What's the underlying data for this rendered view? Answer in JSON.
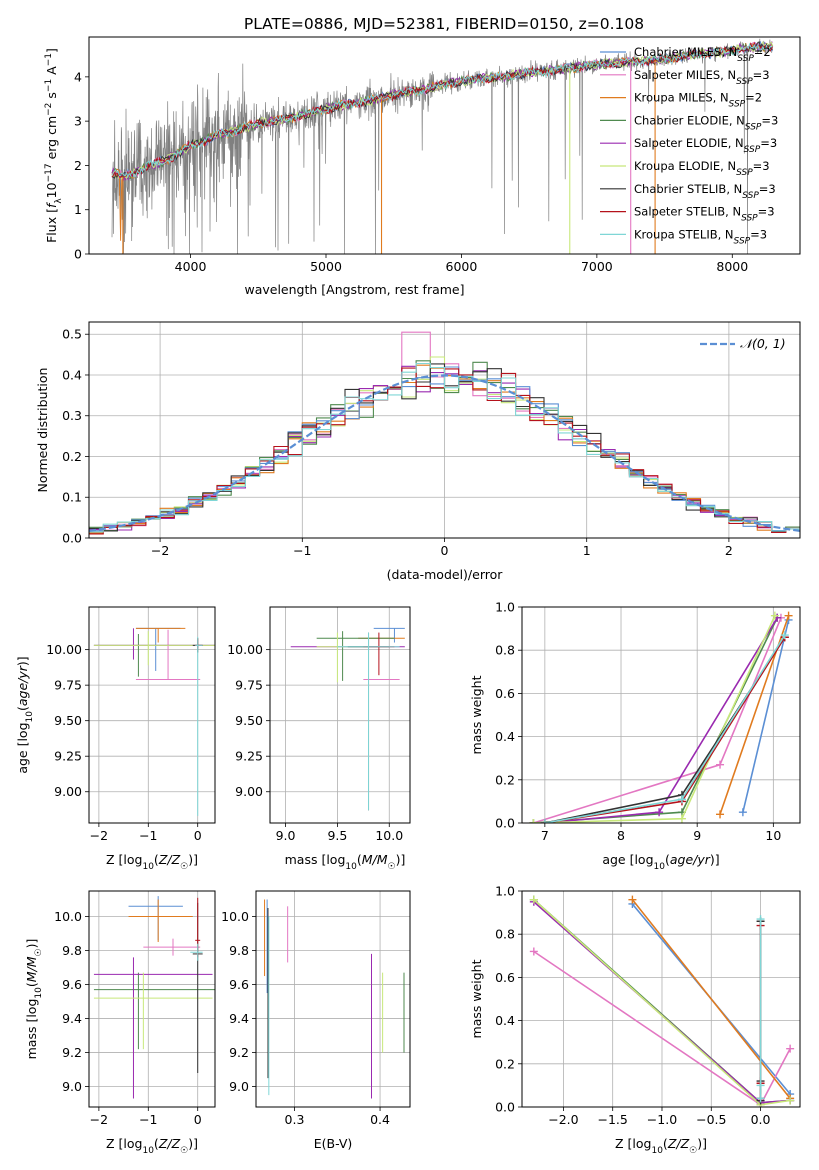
{
  "figure_title": "PLATE=0886, MJD=52381, FIBERID=0150, z=0.108",
  "colors": {
    "chabrier_miles": "#5b8fd4",
    "salpeter_miles": "#e377c2",
    "kroupa_miles": "#e07b1f",
    "chabrier_elodie": "#4f8a4f",
    "salpeter_elodie": "#9a2ab0",
    "kroupa_elodie": "#c8e87a",
    "chabrier_stelib": "#333333",
    "salpeter_stelib": "#b5121b",
    "kroupa_stelib": "#7fd6d6",
    "data": "#808080",
    "gaussian": "#5b8fd4"
  },
  "chart_data": [
    {
      "id": "spectrum",
      "type": "line",
      "title": "PLATE=0886, MJD=52381, FIBERID=0150, z=0.108",
      "xlabel": "wavelength [Angstrom, rest frame]",
      "ylabel": "Flux [fλ10⁻¹⁷ erg cm⁻² s⁻¹ A⁻¹]",
      "xlim": [
        3250,
        8500
      ],
      "ylim": [
        0,
        4.9
      ],
      "xticks": [
        4000,
        5000,
        6000,
        7000,
        8000
      ],
      "yticks": [
        0,
        1,
        2,
        3,
        4
      ],
      "grid": false,
      "legend_position": "top-right",
      "continuum": {
        "x": [
          3420,
          3500,
          3600,
          3700,
          3800,
          3900,
          4000,
          4100,
          4200,
          4300,
          4500,
          4700,
          4900,
          5100,
          5300,
          5500,
          5700,
          5900,
          6100,
          6300,
          6500,
          6700,
          6900,
          7100,
          7300,
          7500,
          7700,
          7900,
          8100,
          8300
        ],
        "y": [
          1.85,
          1.75,
          1.85,
          2.0,
          2.1,
          2.25,
          2.45,
          2.55,
          2.7,
          2.75,
          2.95,
          3.05,
          3.2,
          3.35,
          3.45,
          3.6,
          3.7,
          3.85,
          3.95,
          4.0,
          4.1,
          4.15,
          4.25,
          4.3,
          4.35,
          4.4,
          4.5,
          4.55,
          4.65,
          4.7
        ]
      },
      "legend": [
        {
          "key": "chabrier_miles",
          "label": "Chabrier MILES, N",
          "sub": "SSP",
          "tail": "=2"
        },
        {
          "key": "salpeter_miles",
          "label": "Salpeter MILES, N",
          "sub": "SSP",
          "tail": "=3"
        },
        {
          "key": "kroupa_miles",
          "label": "Kroupa MILES, N",
          "sub": "SSP",
          "tail": "=2"
        },
        {
          "key": "chabrier_elodie",
          "label": "Chabrier ELODIE, N",
          "sub": "SSP",
          "tail": "=3"
        },
        {
          "key": "salpeter_elodie",
          "label": "Salpeter ELODIE, N",
          "sub": "SSP",
          "tail": "=3"
        },
        {
          "key": "kroupa_elodie",
          "label": "Kroupa ELODIE, N",
          "sub": "SSP",
          "tail": "=3"
        },
        {
          "key": "chabrier_stelib",
          "label": "Chabrier STELIB, N",
          "sub": "SSP",
          "tail": "=3"
        },
        {
          "key": "salpeter_stelib",
          "label": "Salpeter STELIB, N",
          "sub": "SSP",
          "tail": "=3"
        },
        {
          "key": "kroupa_stelib",
          "label": "Kroupa STELIB, N",
          "sub": "SSP",
          "tail": "=3"
        }
      ]
    },
    {
      "id": "residuals",
      "type": "line",
      "xlabel": "(data-model)/error",
      "ylabel": "Normed distribution",
      "xlim": [
        -2.5,
        2.5
      ],
      "ylim": [
        0,
        0.53
      ],
      "xticks": [
        -2,
        -1,
        0,
        1,
        2
      ],
      "yticks": [
        0.0,
        0.1,
        0.2,
        0.3,
        0.4,
        0.5
      ],
      "grid": true,
      "legend_position": "top-right",
      "legend_label": "𝒩(0, 1)",
      "bin_edges": [
        -2.5,
        -2.4,
        -2.3,
        -2.2,
        -2.1,
        -2.0,
        -1.9,
        -1.8,
        -1.7,
        -1.6,
        -1.5,
        -1.4,
        -1.3,
        -1.2,
        -1.1,
        -1.0,
        -0.9,
        -0.8,
        -0.7,
        -0.6,
        -0.5,
        -0.4,
        -0.3,
        -0.2,
        -0.1,
        0.0,
        0.1,
        0.2,
        0.3,
        0.4,
        0.5,
        0.6,
        0.7,
        0.8,
        0.9,
        1.0,
        1.1,
        1.2,
        1.3,
        1.4,
        1.5,
        1.6,
        1.7,
        1.8,
        1.9,
        2.0,
        2.1,
        2.2,
        2.3,
        2.4,
        2.5
      ]
    },
    {
      "id": "age_vs_Z",
      "type": "scatter",
      "xlabel": "Z [log10(Z/Z☉)]",
      "ylabel": "age  [log10(age/yr)]",
      "xlim": [
        -2.2,
        0.35
      ],
      "ylim": [
        8.78,
        10.3
      ],
      "xticks": [
        -2,
        -1,
        0
      ],
      "yticks": [
        9.0,
        9.25,
        9.5,
        9.75,
        10.0
      ],
      "grid": true
    },
    {
      "id": "age_vs_mass",
      "type": "scatter",
      "xlabel": "mass [log10(M/M☉)]",
      "xlim": [
        8.85,
        10.2
      ],
      "ylim": [
        8.78,
        10.3
      ],
      "xticks": [
        9.0,
        9.5,
        10.0
      ],
      "yticks": [
        9.0,
        9.25,
        9.5,
        9.75,
        10.0
      ],
      "grid": true
    },
    {
      "id": "weight_vs_age",
      "type": "line",
      "xlabel": "age  [log10(age/yr)]",
      "ylabel": "mass weight",
      "xlim": [
        6.7,
        10.35
      ],
      "ylim": [
        0,
        1.0
      ],
      "xticks": [
        7,
        8,
        9,
        10
      ],
      "yticks": [
        0.0,
        0.2,
        0.4,
        0.6,
        0.8,
        1.0
      ],
      "grid": true,
      "series": [
        {
          "key": "chabrier_miles",
          "x": [
            9.6,
            10.2
          ],
          "y": [
            0.05,
            0.94
          ]
        },
        {
          "key": "salpeter_miles",
          "x": [
            6.85,
            9.3,
            10.1
          ],
          "y": [
            0.0,
            0.27,
            0.95
          ]
        },
        {
          "key": "kroupa_miles",
          "x": [
            9.3,
            10.2
          ],
          "y": [
            0.04,
            0.96
          ]
        },
        {
          "key": "chabrier_elodie",
          "x": [
            6.85,
            8.8,
            10.05
          ],
          "y": [
            0.0,
            0.05,
            0.95
          ]
        },
        {
          "key": "salpeter_elodie",
          "x": [
            7.0,
            8.5,
            10.05
          ],
          "y": [
            0.0,
            0.05,
            0.95
          ]
        },
        {
          "key": "kroupa_elodie",
          "x": [
            6.85,
            8.8,
            10.02
          ],
          "y": [
            0.0,
            0.02,
            0.96
          ]
        },
        {
          "key": "chabrier_stelib",
          "x": [
            7.0,
            8.8,
            10.15
          ],
          "y": [
            0.0,
            0.13,
            0.86
          ]
        },
        {
          "key": "salpeter_stelib",
          "x": [
            7.0,
            8.8,
            10.15
          ],
          "y": [
            0.0,
            0.1,
            0.86
          ]
        },
        {
          "key": "kroupa_stelib",
          "x": [
            7.0,
            8.8,
            10.15
          ],
          "y": [
            0.0,
            0.11,
            0.87
          ]
        }
      ]
    },
    {
      "id": "mass_vs_Z",
      "type": "scatter",
      "xlabel": "Z [log10(Z/Z☉)]",
      "ylabel": "mass [log10(M/M☉)]",
      "xlim": [
        -2.2,
        0.35
      ],
      "ylim": [
        8.88,
        10.15
      ],
      "xticks": [
        -2,
        -1,
        0
      ],
      "yticks": [
        9.0,
        9.2,
        9.4,
        9.6,
        9.8,
        10.0
      ],
      "grid": true
    },
    {
      "id": "mass_vs_ebv",
      "type": "scatter",
      "xlabel": "E(B-V)",
      "xlim": [
        0.255,
        0.435
      ],
      "ylim": [
        8.88,
        10.15
      ],
      "xticks": [
        0.3,
        0.4
      ],
      "yticks": [
        9.0,
        9.2,
        9.4,
        9.6,
        9.8,
        10.0
      ],
      "grid": true
    },
    {
      "id": "weight_vs_Z",
      "type": "line",
      "xlabel": "Z [log10(Z/Z☉)]",
      "ylabel": "mass weight",
      "xlim": [
        -2.42,
        0.4
      ],
      "ylim": [
        0,
        1.0
      ],
      "xticks": [
        -2.0,
        -1.5,
        -1.0,
        -0.5,
        0.0
      ],
      "yticks": [
        0.0,
        0.2,
        0.4,
        0.6,
        0.8,
        1.0
      ],
      "grid": true,
      "series": [
        {
          "key": "chabrier_miles",
          "x": [
            -1.3,
            0.3
          ],
          "y": [
            0.94,
            0.06
          ]
        },
        {
          "key": "salpeter_miles",
          "x": [
            -2.3,
            0.0,
            0.3
          ],
          "y": [
            0.72,
            0.01,
            0.27
          ]
        },
        {
          "key": "kroupa_miles",
          "x": [
            -1.3,
            0.3
          ],
          "y": [
            0.96,
            0.04
          ]
        },
        {
          "key": "chabrier_elodie",
          "x": [
            -2.3,
            0.0,
            0.3
          ],
          "y": [
            0.96,
            0.02,
            0.03
          ]
        },
        {
          "key": "salpeter_elodie",
          "x": [
            -2.3,
            0.0,
            0.3
          ],
          "y": [
            0.95,
            0.02,
            0.03
          ]
        },
        {
          "key": "kroupa_elodie",
          "x": [
            -2.3,
            0.0,
            0.3
          ],
          "y": [
            0.96,
            0.01,
            0.03
          ]
        },
        {
          "key": "chabrier_stelib",
          "x": [
            0.0,
            0.0,
            0.0
          ],
          "y": [
            0.86,
            0.12,
            0.03
          ]
        },
        {
          "key": "salpeter_stelib",
          "x": [
            0.0,
            0.0,
            0.0
          ],
          "y": [
            0.84,
            0.11,
            0.04
          ]
        },
        {
          "key": "kroupa_stelib",
          "x": [
            0.0,
            0.0,
            0.0
          ],
          "y": [
            0.87,
            0.1,
            0.04
          ]
        }
      ]
    }
  ]
}
